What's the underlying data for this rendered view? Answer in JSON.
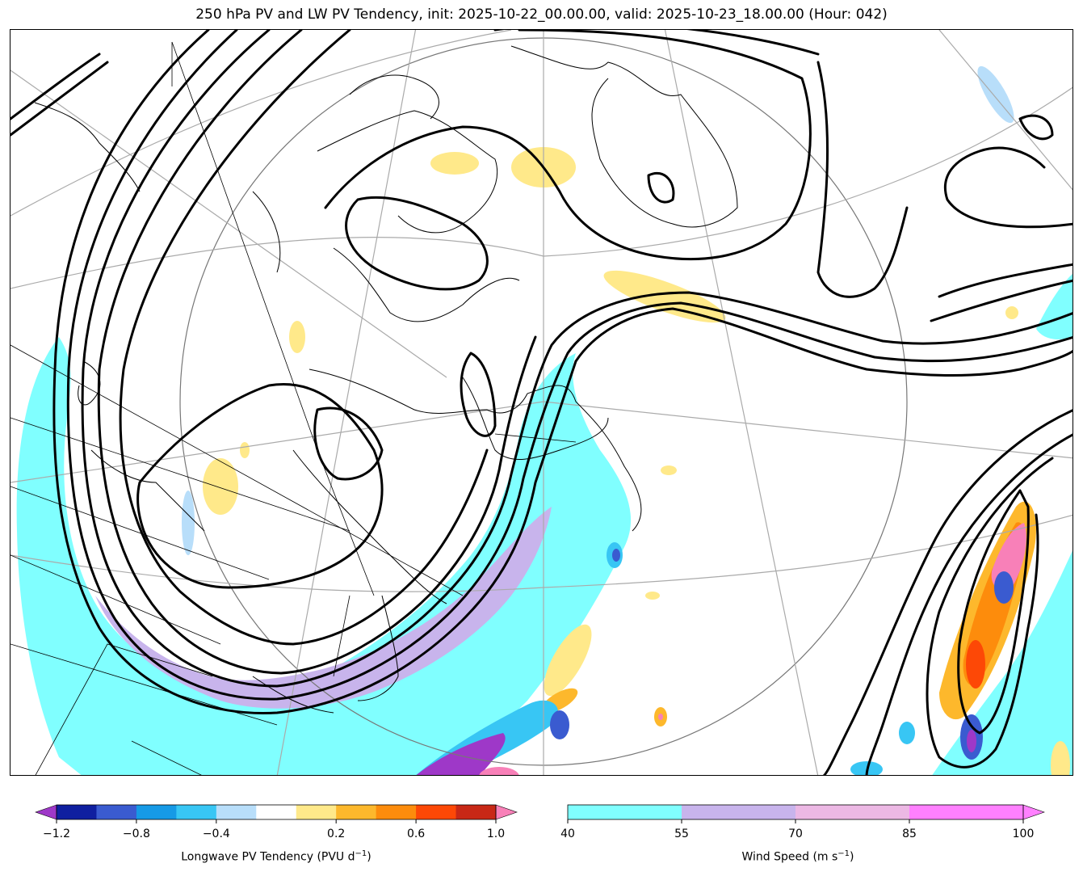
{
  "title": "250 hPa PV and LW PV Tendency, init: 2025-10-22_00.00.00, valid: 2025-10-23_18.00.00 (Hour: 042)",
  "colorbars": {
    "pv_tendency": {
      "label": "Longwave PV Tendency (PVU d⁻¹)",
      "label_text": "Longwave PV Tendency (PVU d",
      "label_sup": "−1",
      "label_end": ")",
      "ticks": [
        "−1.2",
        "−0.8",
        "−0.4",
        "0.2",
        "0.6",
        "1.0"
      ],
      "colors": [
        "#9e38c8",
        "#0f1fa0",
        "#3a5bd0",
        "#169ae6",
        "#38c6f4",
        "#b8defa",
        "#ffffff",
        "#ffe98a",
        "#fdb82c",
        "#fd8c0c",
        "#fd4806",
        "#c82816",
        "#f880b8"
      ]
    },
    "wind_speed": {
      "label_text": "Wind Speed (m s",
      "label_sup": "−1",
      "label_end": ")",
      "ticks": [
        "40",
        "55",
        "70",
        "85",
        "100"
      ],
      "colors": [
        "#80ffff",
        "#c8b4ec",
        "#ecb8e4",
        "#ff80ff"
      ]
    }
  },
  "map": {
    "jet_color": "#80ffff",
    "jet_core_color": "#c8b4ec",
    "contour_color": "#000000",
    "coastline_color": "#000000",
    "grid_color": "#aaaaaa"
  }
}
